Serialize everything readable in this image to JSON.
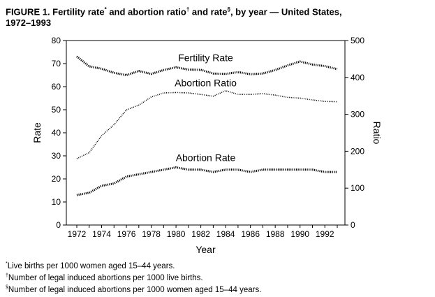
{
  "figure": {
    "title_parts": {
      "p1": "FIGURE 1. Fertility rate",
      "m1": "*",
      "p2": " and abortion ratio",
      "m2": "†",
      "p3": " and rate",
      "m3": "§",
      "p4": ", by year — United States,",
      "p5": "1972–1993"
    },
    "footnotes": [
      {
        "mark": "*",
        "text": "Live births per 1000 women aged 15–44 years."
      },
      {
        "mark": "†",
        "text": "Number of legal induced abortions per 1000 live births."
      },
      {
        "mark": "§",
        "text": "Number of legal induced abortions per 1000 women aged 15–44 years."
      }
    ]
  },
  "chart_data": {
    "type": "line",
    "xlabel": "Year",
    "ylabel_left": "Rate",
    "ylabel_right": "Ratio",
    "xlim": [
      1972,
      1993
    ],
    "ylim_left": [
      0,
      80
    ],
    "ylim_right": [
      0,
      500
    ],
    "x_ticks": [
      "1972",
      "1974",
      "1976",
      "1978",
      "1980",
      "1982",
      "1984",
      "1986",
      "1988",
      "1990",
      "1992"
    ],
    "y_ticks_left": [
      "0",
      "10",
      "20",
      "30",
      "40",
      "50",
      "60",
      "70",
      "80"
    ],
    "y_ticks_right": [
      "0",
      "100",
      "200",
      "300",
      "400",
      "500"
    ],
    "grid": false,
    "legend": "none",
    "categories": [
      1972,
      1973,
      1974,
      1975,
      1976,
      1977,
      1978,
      1979,
      1980,
      1981,
      1982,
      1983,
      1984,
      1985,
      1986,
      1987,
      1988,
      1989,
      1990,
      1991,
      1992,
      1993
    ],
    "series": [
      {
        "name": "Fertility Rate",
        "axis": "left",
        "values": [
          73.1,
          68.8,
          67.8,
          66.0,
          65.0,
          66.8,
          65.5,
          67.2,
          68.4,
          67.4,
          67.3,
          65.7,
          65.5,
          66.3,
          65.4,
          65.7,
          67.2,
          69.2,
          70.9,
          69.6,
          68.9,
          67.6
        ]
      },
      {
        "name": "Abortion Ratio",
        "axis": "right",
        "values": [
          180,
          196,
          242,
          272,
          312,
          325,
          347,
          358,
          359,
          358,
          354,
          349,
          364,
          354,
          354,
          356,
          352,
          346,
          344,
          339,
          335,
          334
        ]
      },
      {
        "name": "Abortion Rate",
        "axis": "left",
        "values": [
          13.0,
          14.0,
          17.0,
          18.0,
          21.0,
          22.0,
          23.0,
          24.0,
          25.0,
          24.0,
          24.0,
          23.0,
          24.0,
          24.0,
          23.0,
          24.0,
          24.0,
          24.0,
          24.0,
          24.0,
          23.0,
          23.0
        ]
      }
    ],
    "series_labels": [
      {
        "text": "Fertility Rate",
        "series": 0
      },
      {
        "text": "Abortion Ratio",
        "series": 1
      },
      {
        "text": "Abortion Rate",
        "series": 2
      }
    ]
  }
}
